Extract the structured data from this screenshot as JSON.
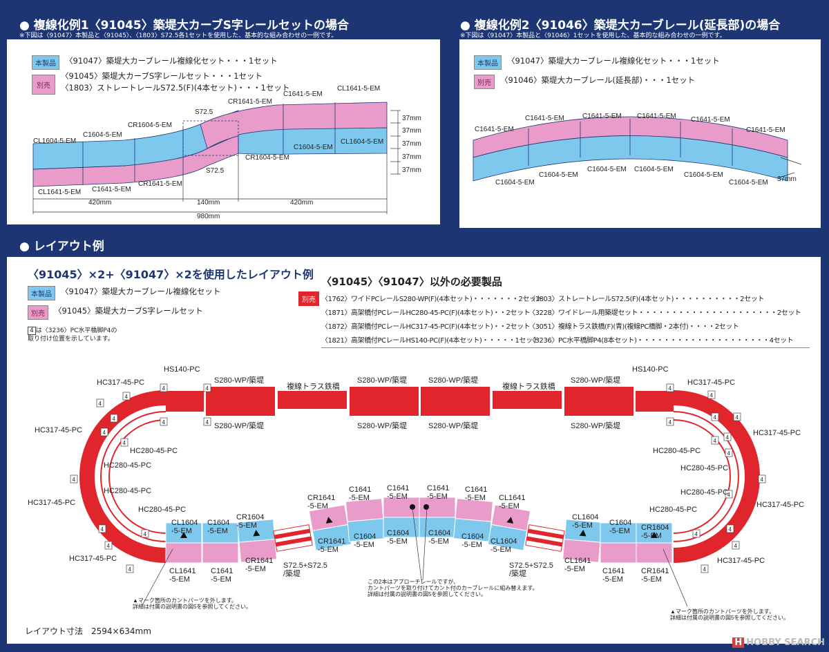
{
  "section1": {
    "title": "● 複線化例1〈91045〉築堤大カーブS字レールセットの場合",
    "note": "※下図は〈91047〉本製品と〈91045〉、〈1803〉S72.5各1セットを使用した、基本的な組み合わせの一例です。",
    "legend": [
      {
        "badge": "本製品",
        "lines": [
          "〈91047〉築堤大カーブレール複線化セット・・・1セット"
        ]
      },
      {
        "badge": "別売",
        "lines": [
          "〈91045〉築堤大カーブS字レールセット・・・1セット",
          "〈1803〉ストレートレールS72.5(F)(4本セット)・・・1セット"
        ]
      }
    ],
    "labels": [
      "CL1604-5-EM",
      "C1604-5-EM",
      "CR1604-5-EM",
      "S72.5",
      "CR1641-5-EM",
      "C1641-5-EM",
      "CL1641-5-EM",
      "C1604-5-EM",
      "CL1604-5-EM",
      "CR1604-5-EM",
      "S72.5",
      "CL1641-5-EM",
      "C1641-5-EM",
      "CR1641-5-EM",
      "37mm",
      "37mm",
      "37mm",
      "37mm",
      "37mm",
      "420mm",
      "140mm",
      "420mm",
      "980mm"
    ]
  },
  "section2": {
    "title": "● 複線化例2〈91046〉築堤大カーブレール(延長部)の場合",
    "note": "※下図は〈91047〉本製品と〈91046〉1セットを使用した、基本的な組み合わせの一例です。",
    "legend": [
      {
        "badge": "本製品",
        "lines": [
          "〈91047〉築堤大カーブレール複線化セット・・・1セット"
        ]
      },
      {
        "badge": "別売",
        "lines": [
          "〈91046〉築堤大カーブレール(延長部)・・・1セット"
        ]
      }
    ],
    "labels": [
      "C1641-5-EM",
      "C1641-5-EM",
      "C1641-5-EM",
      "C1641-5-EM",
      "C1641-5-EM",
      "C1641-5-EM",
      "C1604-5-EM",
      "C1604-5-EM",
      "C1604-5-EM",
      "C1604-5-EM",
      "C1604-5-EM",
      "C1604-5-EM",
      "37mm"
    ]
  },
  "section3": {
    "title": "● レイアウト例",
    "subtitle": "〈91045〉×2+〈91047〉×2を使用したレイアウト例",
    "legend": [
      {
        "badge": "本製品",
        "lines": [
          "〈91047〉築堤大カーブレール複線化セット"
        ]
      },
      {
        "badge": "別売",
        "lines": [
          "〈91045〉築堤大カーブS字レールセット"
        ]
      }
    ],
    "pier_note": [
      "は〈3236〉PC水平橋脚P4の",
      "取り付け位置を示しています。"
    ],
    "pier_marker": "4",
    "required_title": "〈91045〉〈91047〉以外の必要製品",
    "required_badge": "別売",
    "required": [
      "〈1762〉ワイドPCレールS280-WP(F)(4本セット)・・・・・・・2セット",
      "〈1871〉高架橋付PCレールHC280-45-PC(F)(4本セット)・・2セット",
      "〈1872〉高架橋付PCレールHC317-45-PC(F)(4本セット)・・2セット",
      "〈1821〉高架橋付PCレールHS140-PC(F)(4本セット)・・・・・1セット",
      "〈1803〉ストレートレールS72.5(F)(4本セット)・・・・・・・・・・2セット",
      "〈3228〉ワイドレール用築堤セット・・・・・・・・・・・・・・・・・・・・・2セット",
      "〈3051〉複線トラス鉄橋(F)(青)(複線PC橋脚・2本付)・・・・2セット",
      "〈3236〉PC水平橋脚P4(8本セット)・・・・・・・・・・・・・・・・・・・・4セット"
    ],
    "labels": [
      "HS140-PC",
      "HC317-45-PC",
      "S280-WP/築堤",
      "S280-WP/築堤",
      "複線トラス鉄橋",
      "S280-WP/築堤",
      "S280-WP/築堤",
      "S280-WP/築堤",
      "S280-WP/築堤",
      "複線トラス鉄橋",
      "S280-WP/築堤",
      "S280-WP/築堤",
      "HS140-PC",
      "HC317-45-PC",
      "HC317-45-PC",
      "HC280-45-PC",
      "HC280-45-PC",
      "HC280-45-PC",
      "HC317-45-PC",
      "HC280-45-PC",
      "HC317-45-PC",
      "HC317-45-PC",
      "HC280-45-PC",
      "HC280-45-PC",
      "HC280-45-PC",
      "HC317-45-PC",
      "HC280-45-PC",
      "HC317-45-PC",
      "CL1604\n-5-EM",
      "C1604\n-5-EM",
      "CR1604\n-5-EM",
      "CR1641\n-5-EM",
      "C1641\n-5-EM",
      "C1641\n-5-EM",
      "C1641\n-5-EM",
      "C1641\n-5-EM",
      "CL1641\n-5-EM",
      "CL1604\n-5-EM",
      "C1604\n-5-EM",
      "CR1604\n-5-EM",
      "CL1641\n-5-EM",
      "C1641\n-5-EM",
      "CR1641\n-5-EM",
      "S72.5+S72.5\n/築堤",
      "CR1641\n-5-EM",
      "C1604\n-5-EM",
      "C1604\n-5-EM",
      "C1604\n-5-EM",
      "C1604\n-5-EM",
      "CL1604\n-5-EM",
      "S72.5+S72.5\n/築堤",
      "CL1641\n-5-EM",
      "C1641\n-5-EM",
      "CR1641\n-5-EM"
    ],
    "note_left": "▲マーク箇所のカントパーツを外します。\n詳細は付属の説明書の図5を参照してください。",
    "note_center": "この2本はアプローチレールですが、\nカントパーツを取り付けてカント付のカーブレールに組み替えます。\n詳細は付属の説明書の図5を参照してください。",
    "note_right": "▲マーク箇所のカントパーツを外します。\n詳細は付属の説明書の図5を参照してください。",
    "layout_size": "レイアウト寸法　2594×634mm"
  },
  "watermark": "HOBBY SEARCH",
  "colors": {
    "background": "#1d3673",
    "own_product": "#7ec8ee",
    "sold_separately": "#e99cc9",
    "pc_rail": "#e0262c"
  }
}
